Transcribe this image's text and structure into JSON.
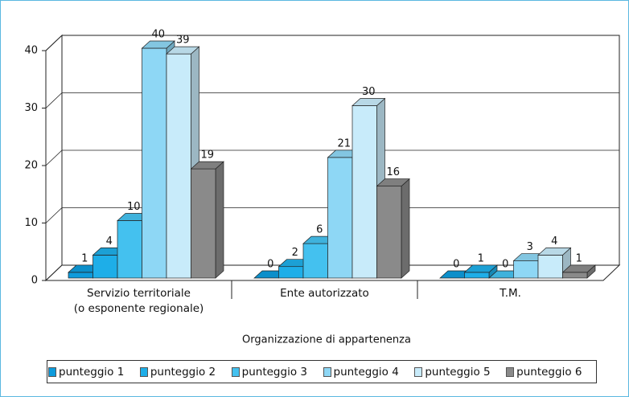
{
  "chart_data": {
    "type": "bar",
    "x_label": "Organizzazione di appartenenza",
    "categories": [
      "Servizio territoriale\n(o esponente regionale)",
      "Ente autorizzato",
      "T.M."
    ],
    "series": [
      {
        "name": "punteggio 1",
        "color": "#0d9bdc",
        "values": [
          1,
          0,
          0
        ]
      },
      {
        "name": "punteggio 2",
        "color": "#1eaee8",
        "values": [
          4,
          2,
          1
        ]
      },
      {
        "name": "punteggio 3",
        "color": "#44c1ef",
        "values": [
          10,
          6,
          0
        ]
      },
      {
        "name": "punteggio 4",
        "color": "#8ed7f5",
        "values": [
          40,
          21,
          3
        ]
      },
      {
        "name": "punteggio 5",
        "color": "#c8ebfa",
        "values": [
          39,
          30,
          4
        ]
      },
      {
        "name": "punteggio 6",
        "color": "#8a8a8a",
        "values": [
          19,
          16,
          1
        ]
      }
    ],
    "ylim": [
      0,
      40
    ],
    "yticks": [
      0,
      10,
      20,
      30,
      40
    ],
    "grid": true,
    "legend": "bottom"
  }
}
